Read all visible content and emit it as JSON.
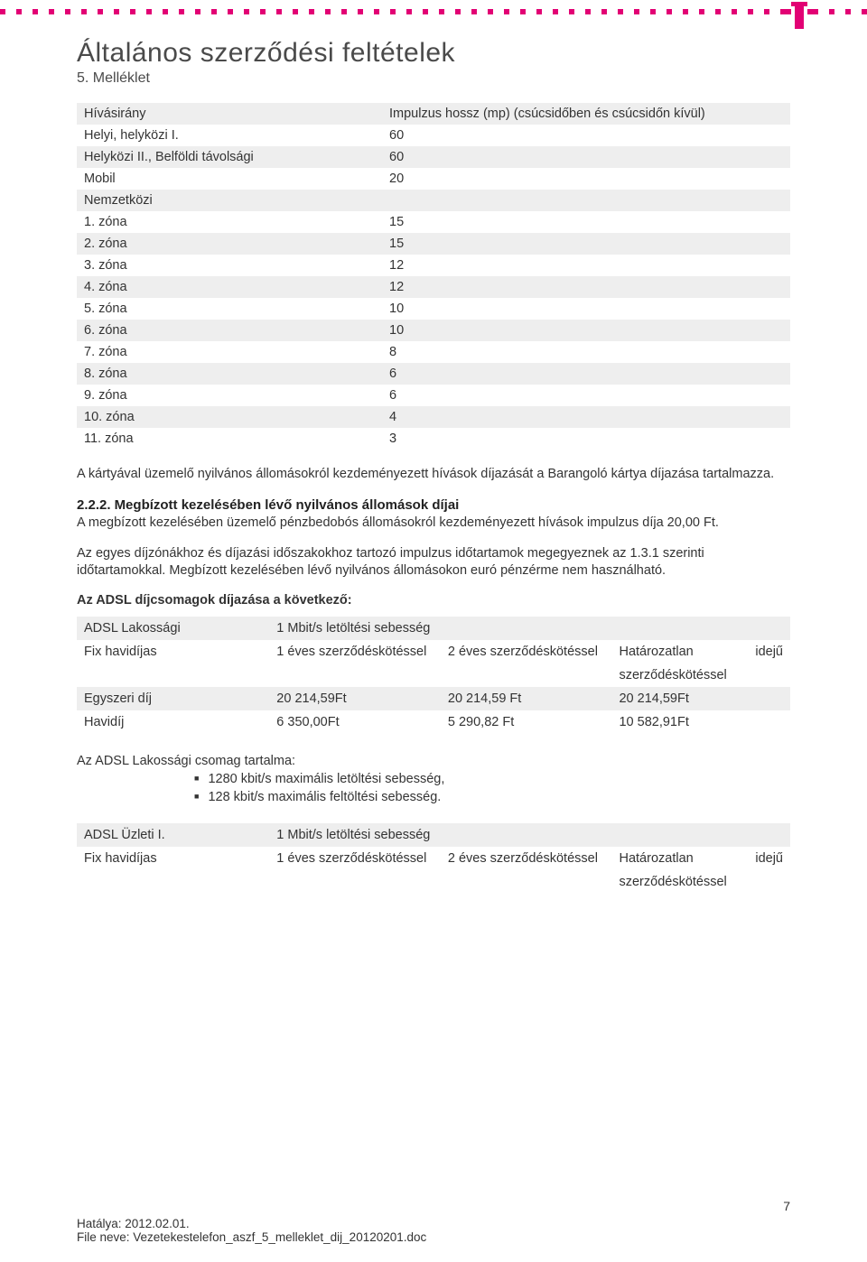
{
  "header": {
    "main_title": "Általános szerződési feltételek",
    "subtitle": "5. Melléklet"
  },
  "zone_table": {
    "header_col1": "Hívásirány",
    "header_col2": "Impulzus hossz (mp) (csúcsidőben és csúcsidőn kívül)",
    "rows": [
      {
        "label": "Helyi, helyközi I.",
        "value": "60"
      },
      {
        "label": "Helyközi II., Belföldi távolsági",
        "value": "60"
      },
      {
        "label": "Mobil",
        "value": "20"
      },
      {
        "label": "Nemzetközi",
        "value": ""
      },
      {
        "label": "1. zóna",
        "value": "15"
      },
      {
        "label": "2. zóna",
        "value": "15"
      },
      {
        "label": "3. zóna",
        "value": "12"
      },
      {
        "label": "4. zóna",
        "value": "12"
      },
      {
        "label": "5. zóna",
        "value": "10"
      },
      {
        "label": "6. zóna",
        "value": "10"
      },
      {
        "label": "7. zóna",
        "value": "8"
      },
      {
        "label": "8. zóna",
        "value": "6"
      },
      {
        "label": "9. zóna",
        "value": "6"
      },
      {
        "label": "10. zóna",
        "value": "4"
      },
      {
        "label": "11. zóna",
        "value": "3"
      }
    ]
  },
  "paragraphs": {
    "p1": "A kártyával üzemelő nyilvános állomásokról kezdeményezett hívások díjazását a Barangoló kártya díjazása tartalmazza.",
    "section_num": "2.2.2.",
    "section_title": "Megbízott kezelésében lévő nyilvános állomások díjai",
    "p2": "A megbízott kezelésében üzemelő pénzbedobós állomásokról kezdeményezett hívások impulzus díja 20,00 Ft.",
    "p3": "Az egyes díjzónákhoz és díjazási időszakokhoz tartozó impulzus időtartamok megegyeznek az 1.3.1 szerinti időtartamokkal. Megbízott kezelésében lévő nyilvános állomásokon euró pénzérme nem használható.",
    "bold_line": "Az ADSL díjcsomagok díjazása a következő:"
  },
  "adsl1": {
    "r1c1": "ADSL Lakossági",
    "r1c2": "1 Mbit/s letöltési sebesség",
    "r2c1": "Fix havidíjas",
    "r2c2": "1 éves szerződéskötéssel",
    "r2c3": "2 éves szerződéskötéssel",
    "r2c4a": "Határozatlan",
    "r2c4b": "idejű",
    "r2c4_sub": "szerződéskötéssel",
    "r3c1": "Egyszeri díj",
    "r3c2": "20 214,59Ft",
    "r3c3": "20 214,59 Ft",
    "r3c4": "20 214,59Ft",
    "r4c1": "Havidíj",
    "r4c2": "6 350,00Ft",
    "r4c3": "5 290,82 Ft",
    "r4c4": "10 582,91Ft"
  },
  "content_block": {
    "title": "Az ADSL Lakossági csomag tartalma:",
    "item1": "1280 kbit/s maximális letöltési sebesség,",
    "item2": "128 kbit/s maximális feltöltési sebesség."
  },
  "adsl2": {
    "r1c1": "ADSL Üzleti I.",
    "r1c2": "1 Mbit/s letöltési sebesség",
    "r2c1": "Fix havidíjas",
    "r2c2": "1 éves szerződéskötéssel",
    "r2c3": "2 éves szerződéskötéssel",
    "r2c4a": "Határozatlan",
    "r2c4b": "idejű",
    "r2c4_sub": "szerződéskötéssel"
  },
  "footer": {
    "line1": "Hatálya: 2012.02.01.",
    "line2": "File neve: Vezetekestelefon_aszf_5_melleklet_dij_20120201.doc",
    "page": "7"
  },
  "colors": {
    "brand": "#e20074",
    "grey_row": "#eeeeee",
    "text": "#333333"
  }
}
